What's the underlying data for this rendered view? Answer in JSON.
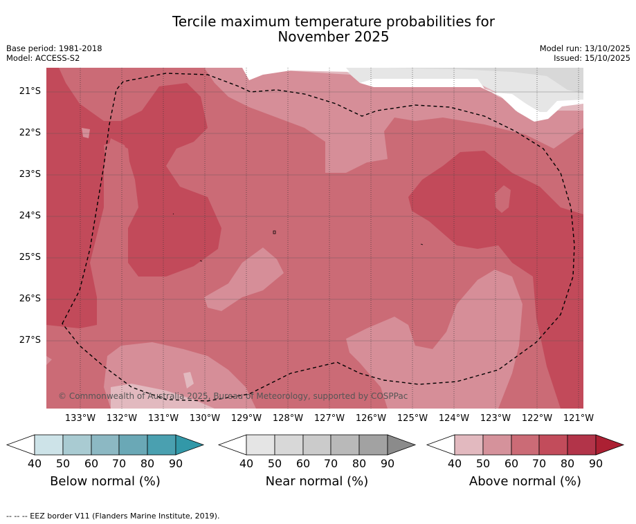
{
  "title_line1": "Tercile maximum temperature probabilities for",
  "title_line2": "November 2025",
  "meta_left": {
    "base_period": "Base period: 1981-2018",
    "model": "Model: ACCESS-S2"
  },
  "meta_right": {
    "model_run": "Model run: 13/10/2025",
    "issued": "Issued: 15/10/2025"
  },
  "lat_labels": [
    "21°S",
    "22°S",
    "23°S",
    "24°S",
    "25°S",
    "26°S",
    "27°S"
  ],
  "lon_labels": [
    "133°W",
    "132°W",
    "131°W",
    "130°W",
    "129°W",
    "128°W",
    "127°W",
    "126°W",
    "125°W",
    "124°W",
    "123°W",
    "122°W",
    "121°W"
  ],
  "copyright": "© Commonwealth of Australia 2025, Bureau of Meteorology, supported by COSPPac",
  "colorbars": [
    {
      "title": "Below normal (%)",
      "ticks": [
        "40",
        "50",
        "60",
        "70",
        "80",
        "90"
      ],
      "colors": [
        "#ffffff",
        "#cde3e8",
        "#a9cbd2",
        "#8cb8c3",
        "#6aa8b6",
        "#4aa0b0",
        "#3298a8"
      ]
    },
    {
      "title": "Near normal (%)",
      "ticks": [
        "40",
        "50",
        "60",
        "70",
        "80",
        "90"
      ],
      "colors": [
        "#ffffff",
        "#e5e5e5",
        "#d8d8d8",
        "#cbcbcb",
        "#b9b9b9",
        "#a2a2a2",
        "#8b8b8b"
      ]
    },
    {
      "title": "Above normal (%)",
      "ticks": [
        "40",
        "50",
        "60",
        "70",
        "80",
        "90"
      ],
      "colors": [
        "#ffffff",
        "#e2b9bf",
        "#d5929b",
        "#cb6b76",
        "#c24c5b",
        "#b23449",
        "#ac2033"
      ]
    }
  ],
  "map_colors": {
    "above_50": "#d68e98",
    "above_60": "#cb6b76",
    "above_70": "#c24a5a",
    "above_40": "#e2b9bf",
    "near_40": "#e6e6e6",
    "near_50": "#d8d8d8"
  },
  "footnote": "--  --  -- EEZ border V11 (Flanders Marine Institute, 2019)."
}
